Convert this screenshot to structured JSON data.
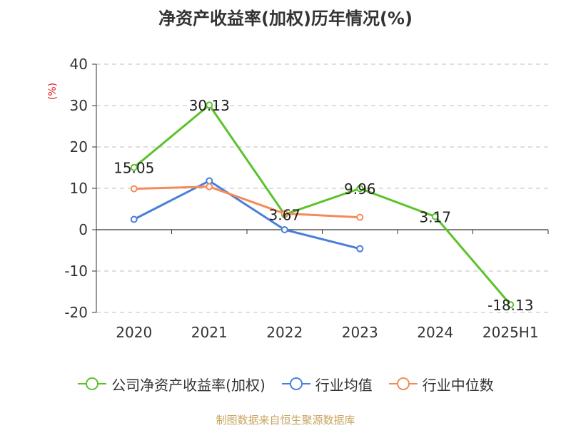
{
  "chart_data": {
    "type": "line",
    "title": "净资产收益率(加权)历年情况(%)",
    "ylabel": "(%)",
    "categories": [
      "2020",
      "2021",
      "2022",
      "2023",
      "2024",
      "2025H1"
    ],
    "ylim": [
      -20,
      40
    ],
    "yticks": [
      40,
      30,
      20,
      10,
      0,
      -10,
      -20
    ],
    "grid": true,
    "legend_position": "bottom",
    "series": [
      {
        "name": "公司净资产收益率(加权)",
        "color": "#5cc22b",
        "values": [
          15.05,
          30.13,
          3.67,
          9.96,
          3.17,
          -18.13
        ],
        "labels": [
          "15.05",
          "30.13",
          "3.67",
          "9.96",
          "3.17",
          "-18.13"
        ]
      },
      {
        "name": "行业均值",
        "color": "#4a7fd9",
        "values": [
          2.5,
          11.8,
          0.0,
          -4.6,
          null,
          null
        ]
      },
      {
        "name": "行业中位数",
        "color": "#f58a5b",
        "values": [
          9.9,
          10.4,
          3.9,
          3.0,
          null,
          null
        ]
      }
    ]
  },
  "footer": {
    "source": "制图数据来自恒生聚源数据库"
  }
}
